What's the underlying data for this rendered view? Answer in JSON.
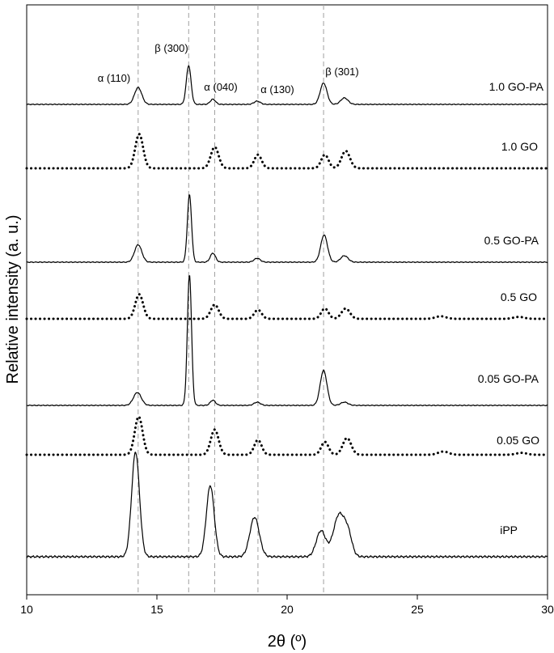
{
  "chart_data": {
    "type": "line",
    "xlabel": "2θ (º)",
    "ylabel": "Relative intensity (a. u.)",
    "xlim": [
      10,
      30
    ],
    "xticks": [
      10,
      15,
      20,
      25,
      30
    ],
    "grid": false,
    "legend": "none",
    "reference_lines": [
      {
        "x": 14.28,
        "label": "α (110)"
      },
      {
        "x": 16.22,
        "label": "β (300)"
      },
      {
        "x": 17.22,
        "label": "α (040)"
      },
      {
        "x": 18.88,
        "label": "α (130)"
      },
      {
        "x": 21.4,
        "label": "β (301)"
      }
    ],
    "series": [
      {
        "name": "1.0 GO-PA",
        "style": "solid",
        "peaks": [
          [
            14.28,
            0.26,
            0.14
          ],
          [
            16.22,
            0.6,
            0.09
          ],
          [
            17.15,
            0.08,
            0.1
          ],
          [
            18.85,
            0.05,
            0.12
          ],
          [
            21.4,
            0.33,
            0.13
          ],
          [
            22.2,
            0.1,
            0.14
          ]
        ]
      },
      {
        "name": "1.0 GO",
        "style": "dotted",
        "peaks": [
          [
            14.32,
            0.53,
            0.15
          ],
          [
            17.22,
            0.33,
            0.15
          ],
          [
            18.88,
            0.21,
            0.14
          ],
          [
            21.45,
            0.21,
            0.14
          ],
          [
            22.25,
            0.27,
            0.16
          ]
        ]
      },
      {
        "name": "0.5 GO-PA",
        "style": "solid",
        "peaks": [
          [
            14.28,
            0.27,
            0.14
          ],
          [
            16.25,
            1.04,
            0.08
          ],
          [
            17.15,
            0.14,
            0.1
          ],
          [
            18.85,
            0.06,
            0.12
          ],
          [
            21.42,
            0.42,
            0.13
          ],
          [
            22.2,
            0.1,
            0.14
          ]
        ]
      },
      {
        "name": "0.5 GO",
        "style": "dotted",
        "peaks": [
          [
            14.32,
            0.38,
            0.15
          ],
          [
            17.22,
            0.22,
            0.15
          ],
          [
            18.88,
            0.14,
            0.14
          ],
          [
            21.45,
            0.16,
            0.14
          ],
          [
            22.25,
            0.16,
            0.16
          ],
          [
            25.9,
            0.04,
            0.2
          ],
          [
            28.9,
            0.03,
            0.2
          ]
        ]
      },
      {
        "name": "0.05 GO-PA",
        "style": "solid",
        "peaks": [
          [
            14.25,
            0.2,
            0.15
          ],
          [
            16.25,
            2.02,
            0.08
          ],
          [
            17.15,
            0.08,
            0.1
          ],
          [
            18.85,
            0.05,
            0.12
          ],
          [
            21.4,
            0.54,
            0.13
          ],
          [
            22.2,
            0.05,
            0.14
          ]
        ]
      },
      {
        "name": "0.05 GO",
        "style": "dotted",
        "peaks": [
          [
            14.3,
            0.59,
            0.15
          ],
          [
            17.22,
            0.39,
            0.15
          ],
          [
            18.88,
            0.23,
            0.14
          ],
          [
            21.45,
            0.2,
            0.14
          ],
          [
            22.3,
            0.26,
            0.16
          ],
          [
            26.0,
            0.05,
            0.2
          ],
          [
            29.0,
            0.03,
            0.2
          ]
        ]
      },
      {
        "name": "iPP",
        "style": "solid",
        "peaks": [
          [
            14.18,
            1.62,
            0.15
          ],
          [
            17.05,
            1.1,
            0.15
          ],
          [
            18.75,
            0.61,
            0.18
          ],
          [
            21.3,
            0.4,
            0.18
          ],
          [
            22.0,
            0.65,
            0.22
          ],
          [
            22.35,
            0.28,
            0.15
          ]
        ]
      }
    ]
  }
}
